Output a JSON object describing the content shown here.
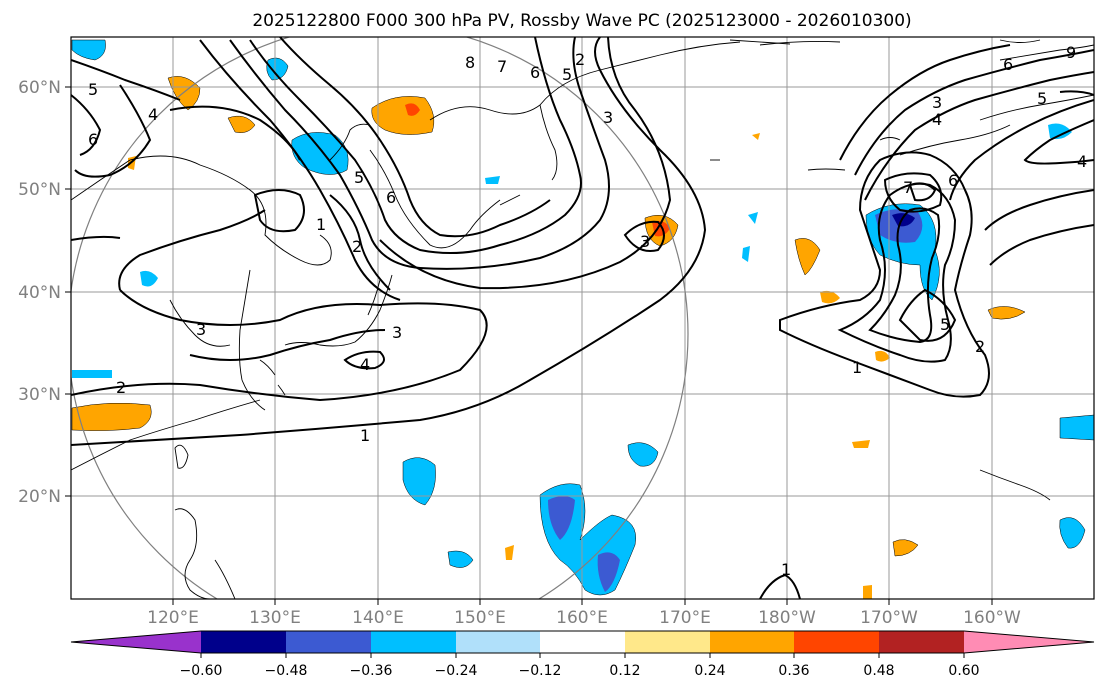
{
  "title": "2025122800 F000 300 hPa PV, Rossby Wave PC (2025123000 - 2026010300)",
  "lat_labels": [
    "60°N",
    "50°N",
    "40°N",
    "30°N",
    "20°N"
  ],
  "lon_labels": [
    "120°E",
    "130°E",
    "140°E",
    "150°E",
    "160°E",
    "170°E",
    "180°W",
    "170°W",
    "160°W"
  ],
  "contour_labels": [
    "5",
    "4",
    "6",
    "5",
    "6",
    "1",
    "2",
    "8",
    "7",
    "6",
    "5",
    "2",
    "3",
    "3",
    "4",
    "3",
    "2",
    "1",
    "3",
    "9",
    "6",
    "5",
    "4",
    "3",
    "2",
    "1",
    "7",
    "6",
    "5",
    "4",
    "1"
  ],
  "colorbar": {
    "ticks": [
      "−0.60",
      "−0.48",
      "−0.36",
      "−0.24",
      "−0.12",
      "0.12",
      "0.24",
      "0.36",
      "0.48",
      "0.60"
    ],
    "colors": [
      "#9932cc",
      "#00008b",
      "#3c5ad2",
      "#00bfff",
      "#b0e0fa",
      "#ffffff",
      "#ffe88a",
      "#ffa500",
      "#ff4500",
      "#b22222",
      "#ff8cb4"
    ]
  },
  "colors": {
    "neg_light": "#b0e0fa",
    "neg_mid": "#00bfff",
    "neg_strong": "#3c5ad2",
    "neg_max": "#00008b",
    "pos_light": "#ffe88a",
    "pos_mid": "#ffa500",
    "pos_strong": "#ff4500",
    "grid": "#999999",
    "axis_label": "#808080"
  }
}
